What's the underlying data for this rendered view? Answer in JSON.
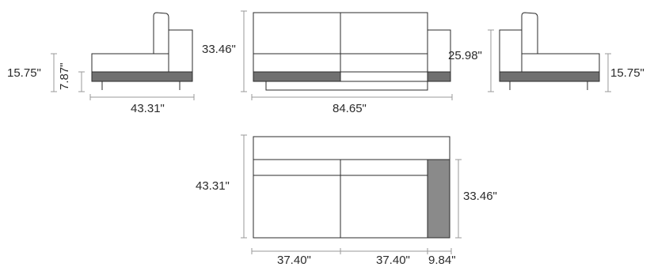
{
  "left_side_view": {
    "height_label": "15.75\"",
    "seat_height_label": "7.87\"",
    "depth_label": "43.31\""
  },
  "front_view": {
    "height_label": "33.46\"",
    "width_label": "84.65\""
  },
  "right_side_view": {
    "back_height_label": "25.98\"",
    "height_label": "15.75\""
  },
  "top_view": {
    "depth_label": "43.31\"",
    "chaise_depth_label": "33.46\"",
    "seat1_width_label": "37.40\"",
    "seat2_width_label": "37.40\"",
    "arm_width_label": "9.84\""
  }
}
